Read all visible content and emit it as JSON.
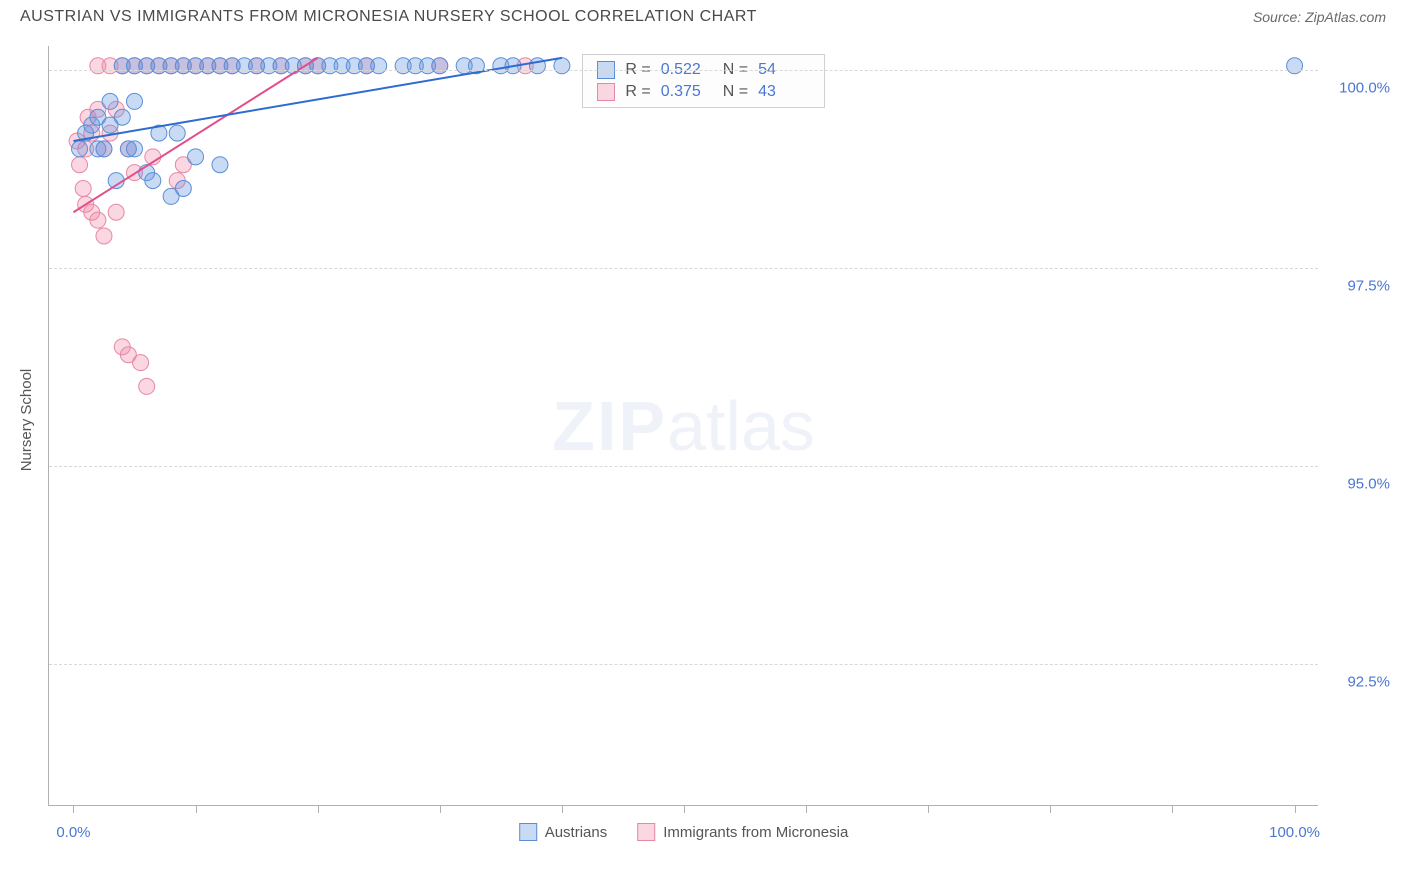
{
  "header": {
    "title": "AUSTRIAN VS IMMIGRANTS FROM MICRONESIA NURSERY SCHOOL CORRELATION CHART",
    "source": "Source: ZipAtlas.com"
  },
  "axes": {
    "y_title": "Nursery School",
    "y_min": 90.7,
    "y_max": 100.3,
    "y_ticks": [
      {
        "value": 100.0,
        "label": "100.0%"
      },
      {
        "value": 97.5,
        "label": "97.5%"
      },
      {
        "value": 95.0,
        "label": "95.0%"
      },
      {
        "value": 92.5,
        "label": "92.5%"
      }
    ],
    "x_min": -2,
    "x_max": 102,
    "x_ticks": [
      0,
      10,
      20,
      30,
      40,
      50,
      60,
      70,
      80,
      90,
      100
    ],
    "x_labels": [
      {
        "value": 0,
        "label": "0.0%"
      },
      {
        "value": 100,
        "label": "100.0%"
      }
    ]
  },
  "watermark": {
    "bold": "ZIP",
    "rest": "atlas"
  },
  "series": [
    {
      "key": "austrians",
      "label": "Austrians",
      "color_fill": "rgba(100,150,225,0.35)",
      "color_stroke": "#5a8fd6",
      "line_color": "#2e6bd1",
      "line_width": 2,
      "marker_r": 8,
      "stats": {
        "R": "0.522",
        "N": "54"
      },
      "trend": {
        "x1": 0,
        "y1": 99.1,
        "x2": 40,
        "y2": 100.15
      },
      "points": [
        [
          0.5,
          99.0
        ],
        [
          1,
          99.2
        ],
        [
          1.5,
          99.3
        ],
        [
          2,
          99.4
        ],
        [
          2,
          99.0
        ],
        [
          2.5,
          99.0
        ],
        [
          3,
          99.3
        ],
        [
          3,
          99.6
        ],
        [
          3.5,
          98.6
        ],
        [
          4,
          99.4
        ],
        [
          4,
          100.05
        ],
        [
          4.5,
          99.0
        ],
        [
          5,
          99.0
        ],
        [
          5,
          99.6
        ],
        [
          5,
          100.05
        ],
        [
          6,
          100.05
        ],
        [
          6,
          98.7
        ],
        [
          6.5,
          98.6
        ],
        [
          7,
          99.2
        ],
        [
          7,
          100.05
        ],
        [
          8,
          100.05
        ],
        [
          8,
          98.4
        ],
        [
          8.5,
          99.2
        ],
        [
          9,
          100.05
        ],
        [
          9,
          98.5
        ],
        [
          10,
          100.05
        ],
        [
          10,
          98.9
        ],
        [
          11,
          100.05
        ],
        [
          12,
          100.05
        ],
        [
          12,
          98.8
        ],
        [
          13,
          100.05
        ],
        [
          14,
          100.05
        ],
        [
          15,
          100.05
        ],
        [
          16,
          100.05
        ],
        [
          17,
          100.05
        ],
        [
          18,
          100.05
        ],
        [
          19,
          100.05
        ],
        [
          20,
          100.05
        ],
        [
          21,
          100.05
        ],
        [
          22,
          100.05
        ],
        [
          23,
          100.05
        ],
        [
          24,
          100.05
        ],
        [
          25,
          100.05
        ],
        [
          27,
          100.05
        ],
        [
          28,
          100.05
        ],
        [
          29,
          100.05
        ],
        [
          30,
          100.05
        ],
        [
          32,
          100.05
        ],
        [
          33,
          100.05
        ],
        [
          35,
          100.05
        ],
        [
          36,
          100.05
        ],
        [
          38,
          100.05
        ],
        [
          40,
          100.05
        ],
        [
          100,
          100.05
        ]
      ]
    },
    {
      "key": "micronesia",
      "label": "Immigrants from Micronesia",
      "color_fill": "rgba(240,140,170,0.35)",
      "color_stroke": "#e688a8",
      "line_color": "#e24f8a",
      "line_width": 2,
      "marker_r": 8,
      "stats": {
        "R": "0.375",
        "N": "43"
      },
      "trend": {
        "x1": 0,
        "y1": 98.2,
        "x2": 20,
        "y2": 100.15
      },
      "points": [
        [
          0.3,
          99.1
        ],
        [
          0.5,
          98.8
        ],
        [
          0.8,
          98.5
        ],
        [
          1,
          98.3
        ],
        [
          1,
          99.0
        ],
        [
          1.2,
          99.4
        ],
        [
          1.5,
          98.2
        ],
        [
          1.5,
          99.2
        ],
        [
          2,
          98.1
        ],
        [
          2,
          99.5
        ],
        [
          2,
          100.05
        ],
        [
          2.5,
          97.9
        ],
        [
          2.5,
          99.0
        ],
        [
          3,
          99.2
        ],
        [
          3,
          100.05
        ],
        [
          3.5,
          98.2
        ],
        [
          3.5,
          99.5
        ],
        [
          4,
          100.05
        ],
        [
          4,
          96.5
        ],
        [
          4.5,
          96.4
        ],
        [
          4.5,
          99.0
        ],
        [
          5,
          100.05
        ],
        [
          5,
          98.7
        ],
        [
          5.5,
          96.3
        ],
        [
          6,
          100.05
        ],
        [
          6,
          96.0
        ],
        [
          6.5,
          98.9
        ],
        [
          7,
          100.05
        ],
        [
          8,
          100.05
        ],
        [
          8.5,
          98.6
        ],
        [
          9,
          100.05
        ],
        [
          9,
          98.8
        ],
        [
          10,
          100.05
        ],
        [
          11,
          100.05
        ],
        [
          12,
          100.05
        ],
        [
          13,
          100.05
        ],
        [
          15,
          100.05
        ],
        [
          17,
          100.05
        ],
        [
          19,
          100.05
        ],
        [
          20,
          100.05
        ],
        [
          24,
          100.05
        ],
        [
          30,
          100.05
        ],
        [
          37,
          100.05
        ]
      ]
    }
  ],
  "legend_bottom": [
    {
      "series": "austrians"
    },
    {
      "series": "micronesia"
    }
  ],
  "stats_box": {
    "left_pct": 42,
    "top_pct": 1
  }
}
